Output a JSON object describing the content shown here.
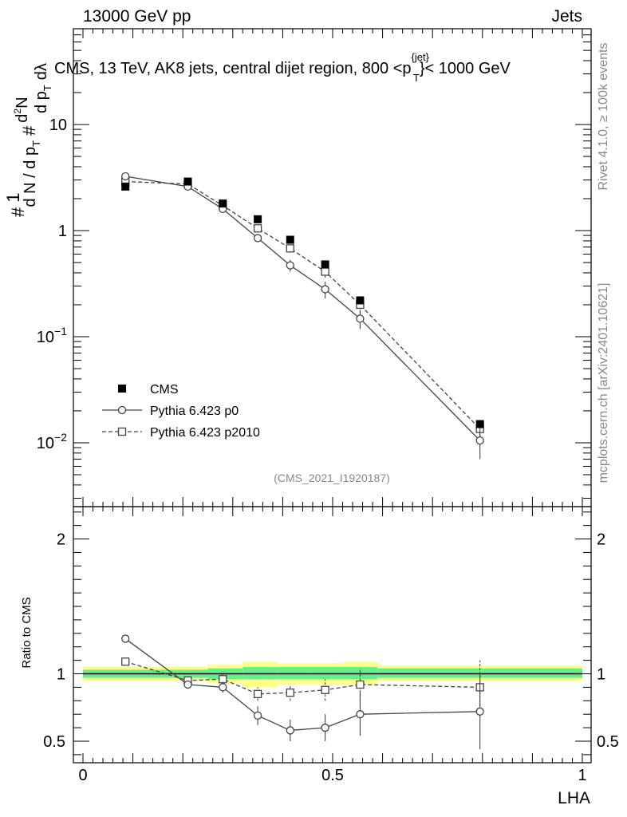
{
  "header": {
    "left": "13000 GeV pp",
    "right": "Jets"
  },
  "side_labels": {
    "rivet": "Rivet 4.1.0, ≥ 100k events",
    "mcplots": "mcplots.cern.ch [arXiv:2401.10621]"
  },
  "chart_data": [
    {
      "type": "scatter",
      "panel": "main",
      "title": "CMS, 13 TeV, AK8 jets, central dijet region, 800 <p",
      "title_sup": "{jet}",
      "title_sub": "T",
      "title_end": "}< 1000 GeV",
      "analysis_tag": "(CMS_2021_I1920187)",
      "yscale": "log",
      "xlim": [
        0,
        1
      ],
      "ylim": [
        0.0025,
        80
      ],
      "ylabel_parts": [
        "#",
        "1",
        "d N / d p",
        "T",
        "#",
        "d",
        "2",
        "N",
        "d p",
        "T",
        "dλ"
      ],
      "yticks": [
        {
          "v": 0.01,
          "base": "10",
          "exp": "−2"
        },
        {
          "v": 0.1,
          "base": "10",
          "exp": "−1"
        },
        {
          "v": 1,
          "base": "1",
          "exp": ""
        },
        {
          "v": 10,
          "base": "10",
          "exp": ""
        }
      ],
      "legend": {
        "position": "bottom-left",
        "entries": [
          "CMS",
          "Pythia 6.423 p0",
          "Pythia 6.423 p2010"
        ]
      },
      "series": [
        {
          "name": "CMS",
          "style": "filled-square",
          "x": [
            0.085,
            0.21,
            0.28,
            0.35,
            0.415,
            0.485,
            0.555,
            0.795
          ],
          "y": [
            2.6,
            2.9,
            1.8,
            1.28,
            0.82,
            0.48,
            0.22,
            0.015
          ]
        },
        {
          "name": "Pythia 6.423 p0",
          "style": "open-circle-solid",
          "x": [
            0.085,
            0.21,
            0.28,
            0.35,
            0.415,
            0.485,
            0.555,
            0.795
          ],
          "y": [
            3.25,
            2.6,
            1.6,
            0.85,
            0.47,
            0.28,
            0.148,
            0.0105
          ],
          "yerr_lo": [
            0.15,
            0.1,
            0.1,
            0.07,
            0.06,
            0.05,
            0.03,
            0.0035
          ],
          "yerr_hi": [
            0.15,
            0.1,
            0.1,
            0.07,
            0.06,
            0.05,
            0.03,
            0.0035
          ]
        },
        {
          "name": "Pythia 6.423 p2010",
          "style": "open-square-dashed",
          "x": [
            0.085,
            0.21,
            0.28,
            0.35,
            0.415,
            0.485,
            0.555,
            0.795
          ],
          "y": [
            2.9,
            2.75,
            1.72,
            1.05,
            0.68,
            0.41,
            0.2,
            0.0135
          ],
          "yerr_lo": [
            0.1,
            0.1,
            0.08,
            0.07,
            0.06,
            0.05,
            0.03,
            0.002
          ],
          "yerr_hi": [
            0.1,
            0.1,
            0.08,
            0.07,
            0.06,
            0.05,
            0.03,
            0.002
          ]
        }
      ]
    },
    {
      "type": "scatter",
      "panel": "ratio",
      "xlabel": "LHA",
      "ylabel": "Ratio to CMS",
      "yscale": "linear",
      "xlim": [
        0,
        1
      ],
      "ylim": [
        0.34,
        2.24
      ],
      "xticks": [
        "0",
        "0.5",
        "1"
      ],
      "yticks": [
        "0.5",
        "1",
        "2"
      ],
      "bands": {
        "edges": [
          0,
          0.17,
          0.25,
          0.32,
          0.39,
          0.46,
          0.52,
          0.59,
          1.0
        ],
        "yellow_lo": [
          0.95,
          0.95,
          0.93,
          0.9,
          0.92,
          0.92,
          0.92,
          0.95
        ],
        "yellow_hi": [
          1.05,
          1.05,
          1.07,
          1.09,
          1.08,
          1.08,
          1.09,
          1.06
        ],
        "green_lo": [
          0.97,
          0.97,
          0.96,
          0.96,
          0.96,
          0.96,
          0.96,
          0.97
        ],
        "green_hi": [
          1.03,
          1.03,
          1.04,
          1.05,
          1.05,
          1.05,
          1.05,
          1.04
        ]
      },
      "series": [
        {
          "name": "Pythia 6.423 p0",
          "style": "open-circle-solid",
          "x": [
            0.085,
            0.21,
            0.28,
            0.35,
            0.415,
            0.485,
            0.555,
            0.795
          ],
          "y": [
            1.26,
            0.92,
            0.9,
            0.69,
            0.58,
            0.6,
            0.7,
            0.72
          ],
          "yerr_lo": [
            0.02,
            0.03,
            0.04,
            0.07,
            0.08,
            0.1,
            0.16,
            0.28
          ],
          "yerr_hi": [
            0.02,
            0.03,
            0.04,
            0.07,
            0.08,
            0.1,
            0.16,
            0.28
          ]
        },
        {
          "name": "Pythia 6.423 p2010",
          "style": "open-square-dashed",
          "x": [
            0.085,
            0.21,
            0.28,
            0.35,
            0.415,
            0.485,
            0.555,
            0.795
          ],
          "y": [
            1.09,
            0.95,
            0.96,
            0.85,
            0.86,
            0.88,
            0.92,
            0.9
          ],
          "yerr_lo": [
            0.02,
            0.03,
            0.04,
            0.05,
            0.06,
            0.08,
            0.12,
            0.2
          ],
          "yerr_hi": [
            0.02,
            0.03,
            0.04,
            0.05,
            0.06,
            0.08,
            0.12,
            0.2
          ]
        }
      ]
    }
  ]
}
